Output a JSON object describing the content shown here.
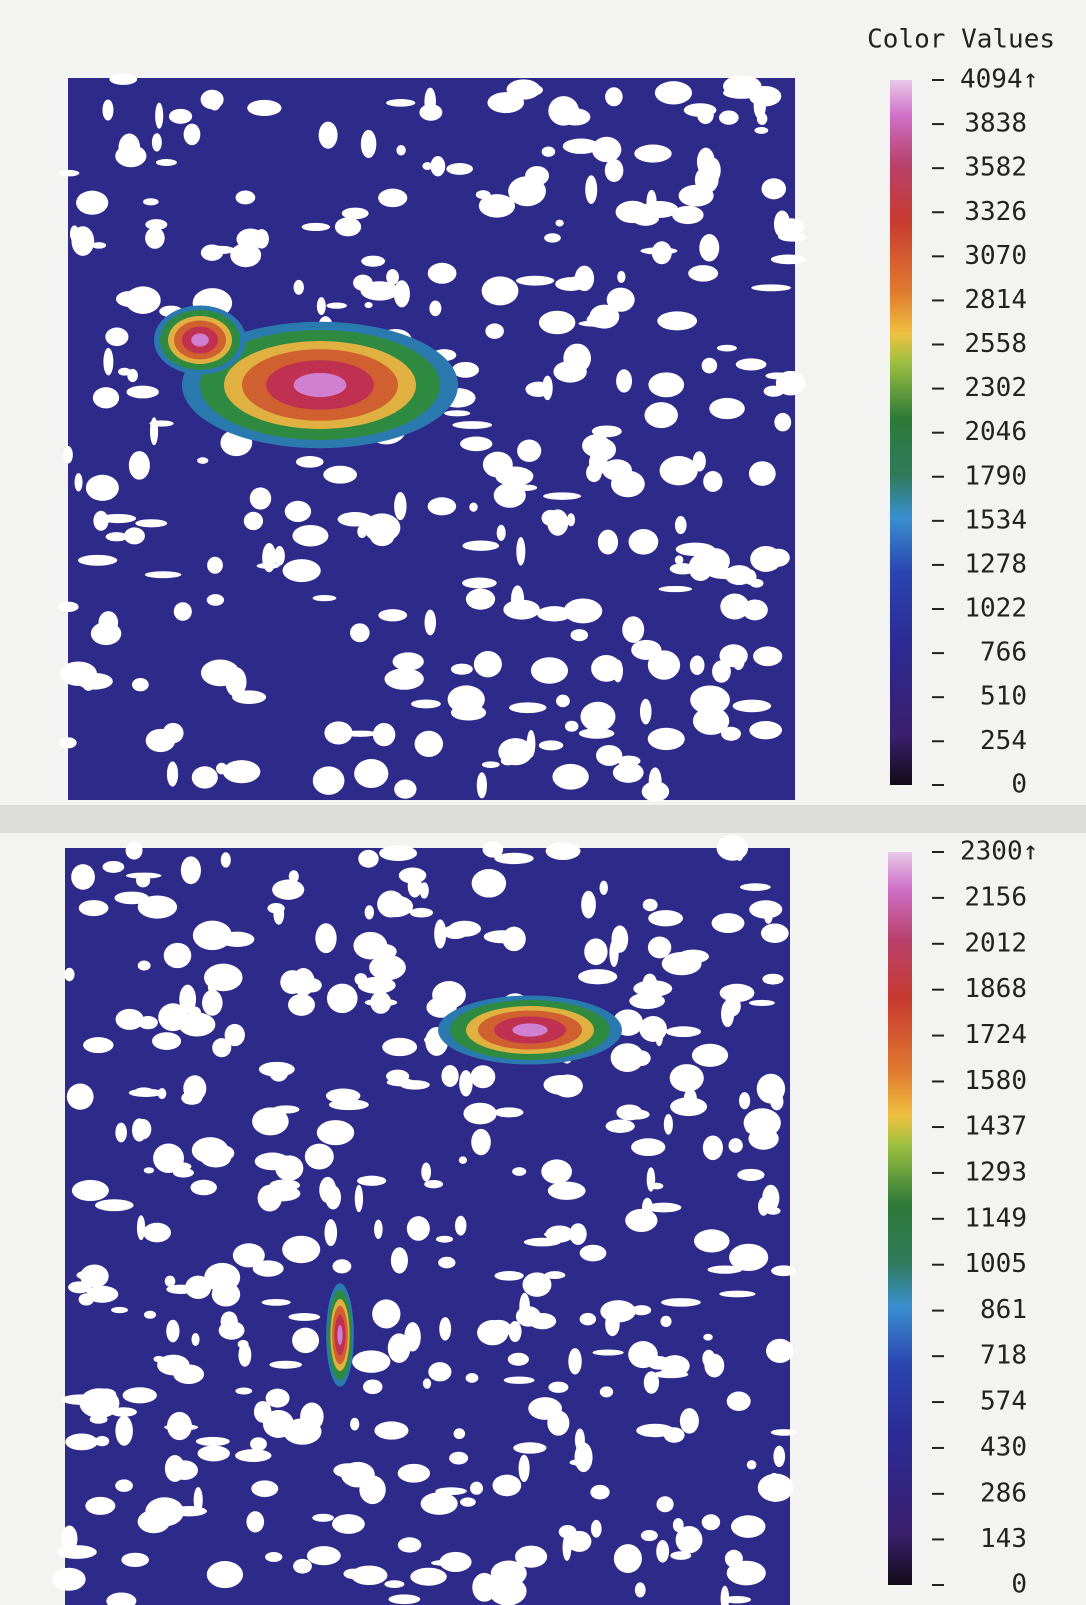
{
  "chart_data": [
    {
      "type": "heatmap",
      "legend_title": "Color Values",
      "zlim": [
        0,
        4094
      ],
      "zticks": [
        0,
        254,
        510,
        766,
        1022,
        1278,
        1534,
        1790,
        2046,
        2302,
        2558,
        2814,
        3070,
        3326,
        3582,
        3838,
        {
          "value": 4094,
          "label": "4094↑"
        }
      ]
    },
    {
      "type": "heatmap",
      "zlim": [
        0,
        2300
      ],
      "zticks": [
        0,
        143,
        286,
        430,
        574,
        718,
        861,
        1005,
        1149,
        1293,
        1437,
        1580,
        1724,
        1868,
        2012,
        2156,
        {
          "value": 2300,
          "label": "2300↑"
        }
      ]
    }
  ]
}
